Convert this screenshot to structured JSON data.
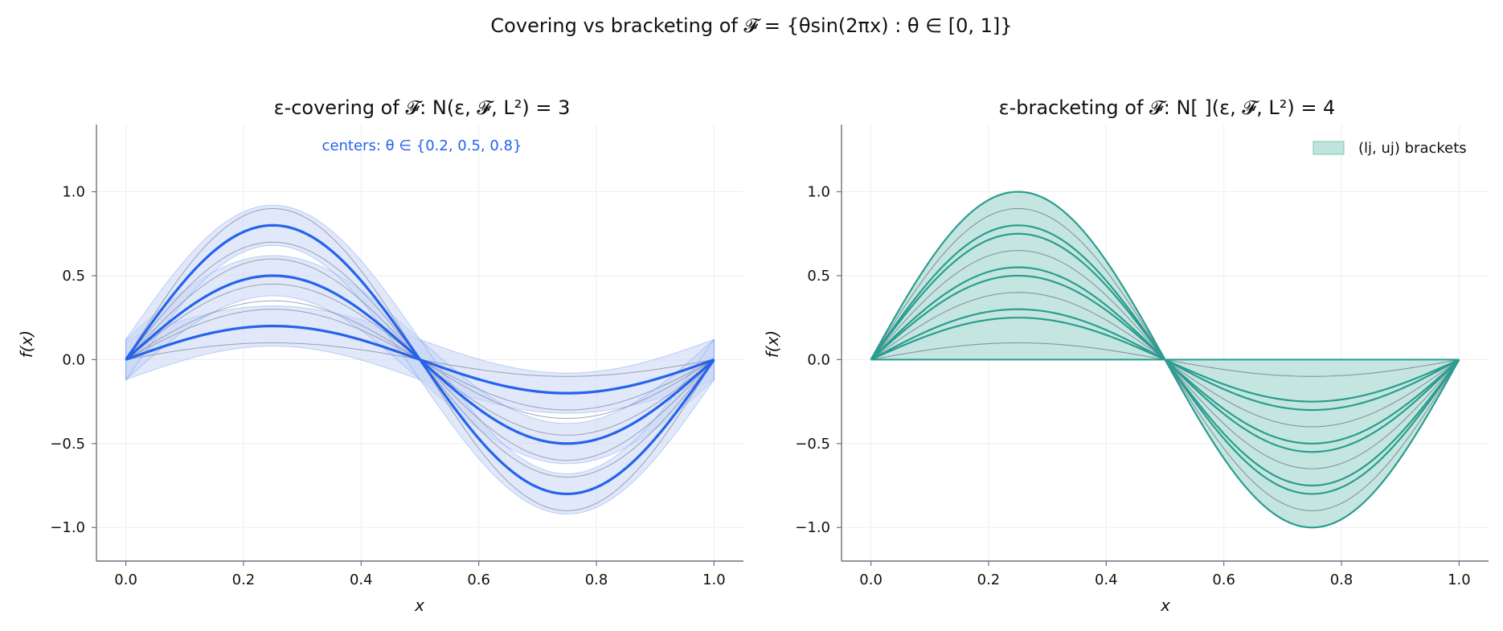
{
  "figure": {
    "suptitle": "Covering vs bracketing of 𝓕 = {θsin(2πx) : θ ∈ [0, 1]}"
  },
  "colors": {
    "covering_line": "#2563eb",
    "covering_fill": "#c7d5f6",
    "member_line": "#8a8fa3",
    "bracket_line": "#2a9d8f",
    "bracket_fill": "#bfe3dd",
    "grid": "#eeeeee",
    "axis": "#6b7280"
  },
  "chart_data": [
    {
      "type": "line",
      "title": "ε-covering of 𝓕: N(ε, 𝓕, L²) = 3",
      "annotation": "centers: θ ∈ {0.2, 0.5, 0.8}",
      "xlabel": "x",
      "ylabel": "f(x)",
      "xlim": [
        -0.05,
        1.05
      ],
      "ylim": [
        -1.2,
        1.4
      ],
      "xticks": [
        "0.0",
        "0.2",
        "0.4",
        "0.6",
        "0.8",
        "1.0"
      ],
      "yticks": [
        "−1.0",
        "−0.5",
        "0.0",
        "0.5",
        "1.0"
      ],
      "grid": true,
      "function": "θ·sin(2πx)",
      "centers": [
        0.2,
        0.5,
        0.8
      ],
      "epsilon_band_half_width": 0.12,
      "member_thetas": [
        0.1,
        0.3,
        0.35,
        0.45,
        0.6,
        0.7,
        0.9
      ]
    },
    {
      "type": "area",
      "title": "ε-bracketing of 𝓕: N[ ](ε, 𝓕, L²) = 4",
      "xlabel": "x",
      "ylabel": "f(x)",
      "xlim": [
        -0.05,
        1.05
      ],
      "ylim": [
        -1.2,
        1.4
      ],
      "xticks": [
        "0.0",
        "0.2",
        "0.4",
        "0.6",
        "0.8",
        "1.0"
      ],
      "yticks": [
        "−1.0",
        "−0.5",
        "0.0",
        "0.5",
        "1.0"
      ],
      "grid": true,
      "legend": {
        "label": "(lj, uj) brackets",
        "position": "top-right"
      },
      "function": "θ·sin(2πx)",
      "brackets": [
        [
          0,
          0.25
        ],
        [
          0.25,
          0.5
        ],
        [
          0.5,
          0.75
        ],
        [
          0.75,
          1.0
        ]
      ],
      "bracket_edges": [
        0.25,
        0.3,
        0.5,
        0.55,
        0.75,
        0.8,
        1.0
      ],
      "member_thetas": [
        0.1,
        0.4,
        0.65,
        0.9
      ]
    }
  ]
}
